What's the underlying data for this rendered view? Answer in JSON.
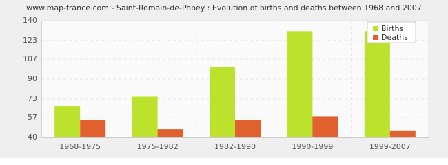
{
  "chart_data": {
    "type": "bar",
    "title": "www.map-france.com - Saint-Romain-de-Popey : Evolution of births and deaths between 1968 and 2007",
    "categories": [
      "1968-1975",
      "1975-1982",
      "1982-1990",
      "1990-1999",
      "1999-2007"
    ],
    "series": [
      {
        "name": "Births",
        "color": "#bde22e",
        "values": [
          67,
          75,
          100,
          131,
          131
        ]
      },
      {
        "name": "Deaths",
        "color": "#e0612e",
        "values": [
          55,
          47,
          55,
          58,
          46
        ]
      }
    ],
    "ylim": [
      40,
      140
    ],
    "yticks": [
      40,
      57,
      73,
      90,
      107,
      123,
      140
    ],
    "grid": true,
    "legend": "top-right"
  }
}
